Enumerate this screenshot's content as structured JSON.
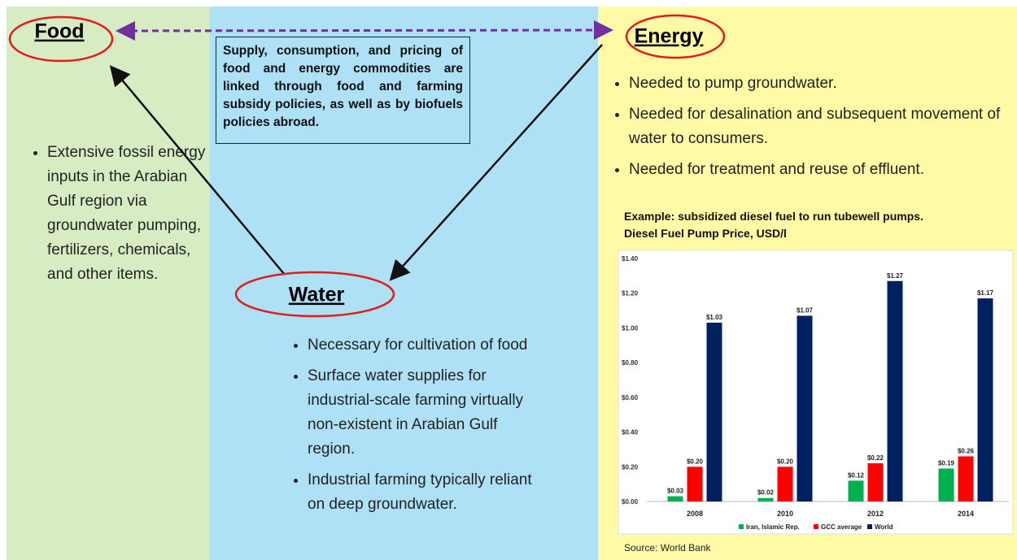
{
  "food": {
    "label": "Food",
    "bullets": [
      "Extensive fossil energy inputs in the Arabian Gulf region via groundwater pumping, fertilizers, chemicals, and other items."
    ]
  },
  "energy": {
    "label": "Energy",
    "bullets": [
      "Needed to pump groundwater.",
      "Needed for desalination and subsequent movement of water to consumers.",
      "Needed for treatment and reuse of effluent."
    ]
  },
  "water": {
    "label": "Water",
    "bullets": [
      "Necessary for cultivation of food",
      "Surface water supplies for industrial-scale farming virtually non-existent in Arabian Gulf region.",
      "Industrial farming typically reliant on deep groundwater."
    ]
  },
  "linkage_note": "Supply, consumption, and pricing of food and energy commodities are linked through food and farming subsidy policies, as well as by biofuels policies abroad.",
  "chart_data": {
    "type": "bar",
    "title": "Example:  subsidized diesel fuel to run tubewell pumps.",
    "subtitle": "Diesel Fuel Pump Price, USD/l",
    "categories": [
      "2008",
      "2010",
      "2012",
      "2014"
    ],
    "series": [
      {
        "name": "Iran, Islamic Rep.",
        "color": "#00b050",
        "values": [
          0.03,
          0.02,
          0.12,
          0.19
        ],
        "value_labels": [
          "$0.03",
          "$0.02",
          "$0.12",
          "$0.19"
        ]
      },
      {
        "name": "GCC average",
        "color": "#ff0000",
        "values": [
          0.2,
          0.2,
          0.22,
          0.26
        ],
        "value_labels": [
          "$0.20",
          "$0.20",
          "$0.22",
          "$0.26"
        ]
      },
      {
        "name": "World",
        "color": "#002060",
        "values": [
          1.03,
          1.07,
          1.27,
          1.17
        ],
        "value_labels": [
          "$1.03",
          "$1.07",
          "$1.27",
          "$1.17"
        ]
      }
    ],
    "ylim": [
      0,
      1.4
    ],
    "yticks": [
      {
        "value": 0,
        "label": "$0.00"
      },
      {
        "value": 0.2,
        "label": "$0.20"
      },
      {
        "value": 0.4,
        "label": "$0.40"
      },
      {
        "value": 0.6,
        "label": "$0.60"
      },
      {
        "value": 0.8,
        "label": "$0.80"
      },
      {
        "value": 1.0,
        "label": "$1.00"
      },
      {
        "value": 1.2,
        "label": "$1.20"
      },
      {
        "value": 1.4,
        "label": "$1.40"
      }
    ],
    "legend": "bottom",
    "source": "Source: World Bank"
  }
}
